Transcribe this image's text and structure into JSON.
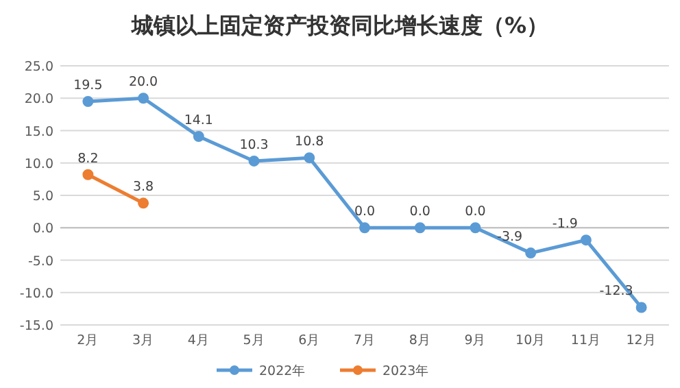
{
  "chart_data": {
    "type": "line",
    "title": "城镇以上固定资产投资同比增长速度（%）",
    "categories": [
      "2月",
      "3月",
      "4月",
      "5月",
      "6月",
      "7月",
      "8月",
      "9月",
      "10月",
      "11月",
      "12月"
    ],
    "series": [
      {
        "name": "2022年",
        "color": "#5b9bd5",
        "values": [
          19.5,
          20.0,
          14.1,
          10.3,
          10.8,
          0.0,
          0.0,
          0.0,
          -3.9,
          -1.9,
          -12.3
        ],
        "value_labels": [
          "19.5",
          "20.0",
          "14.1",
          "10.3",
          "10.8",
          "0.0",
          "0.0",
          "0.0",
          "-3.9",
          "-1.9",
          "-12.3"
        ]
      },
      {
        "name": "2023年",
        "color": "#ed7d31",
        "values": [
          8.2,
          3.8,
          null,
          null,
          null,
          null,
          null,
          null,
          null,
          null,
          null
        ],
        "value_labels": [
          "8.2",
          "3.8",
          null,
          null,
          null,
          null,
          null,
          null,
          null,
          null,
          null
        ]
      }
    ],
    "ylim": [
      -15,
      25
    ],
    "yticks": [
      {
        "value": -15,
        "label": "-15.0"
      },
      {
        "value": -10,
        "label": "-10.0"
      },
      {
        "value": -5,
        "label": "-5.0"
      },
      {
        "value": 0,
        "label": "0.0"
      },
      {
        "value": 5,
        "label": "5.0"
      },
      {
        "value": 10,
        "label": "10.0"
      },
      {
        "value": 15,
        "label": "15.0"
      },
      {
        "value": 20,
        "label": "20.0"
      },
      {
        "value": 25,
        "label": "25.0"
      }
    ],
    "grid": "y",
    "legend": "bottom",
    "marker": "circle",
    "line_style": "solid"
  }
}
